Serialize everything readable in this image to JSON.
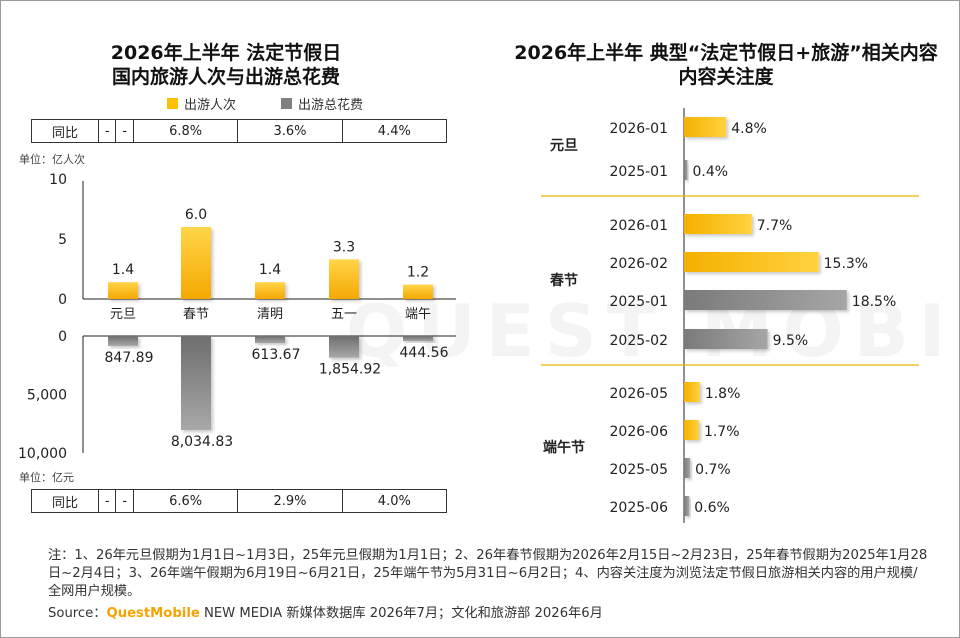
{
  "watermark": "QUEST MOBILE",
  "left": {
    "title_line1": "2026年上半年 法定节假日",
    "title_line2": "国内旅游人次与出游总花费",
    "legend": [
      {
        "label": "出游人次",
        "color": "#FFC000"
      },
      {
        "label": "出游总花费",
        "color": "#808080"
      }
    ],
    "yoy_label": "同比",
    "yoy_top": [
      "-",
      "-",
      "6.8%",
      "3.6%",
      "4.4%"
    ],
    "yoy_bottom": [
      "-",
      "-",
      "6.6%",
      "2.9%",
      "4.0%"
    ],
    "unit_top": "单位：亿人次",
    "unit_bottom": "单位：亿元"
  },
  "right": {
    "title_line1": "2026年上半年 典型“法定节假日+旅游”相关内容",
    "title_line2": "内容关注度"
  },
  "chart_data": [
    {
      "type": "bar",
      "ylabel": "单位：亿人次",
      "ylim": [
        0,
        10
      ],
      "yticks": [
        "10",
        "5",
        "0"
      ],
      "categories": [
        "元旦",
        "春节",
        "清明",
        "五一",
        "端午"
      ],
      "series": [
        {
          "name": "出游人次",
          "values": [
            1.4,
            6.0,
            1.4,
            3.3,
            1.2
          ],
          "labels": [
            "1.4",
            "6.0",
            "1.4",
            "3.3",
            "1.2"
          ]
        }
      ]
    },
    {
      "type": "bar",
      "orientation": "inverted",
      "ylabel": "单位：亿元",
      "ylim": [
        0,
        10000
      ],
      "yticks": [
        "0",
        "5,000",
        "10,000"
      ],
      "categories": [
        "元旦",
        "春节",
        "清明",
        "五一",
        "端午"
      ],
      "series": [
        {
          "name": "出游总花费",
          "values": [
            847.89,
            8034.83,
            613.67,
            1854.92,
            444.56
          ],
          "labels": [
            "847.89",
            "8,034.83",
            "613.67",
            "1,854.92",
            "444.56"
          ]
        }
      ]
    },
    {
      "type": "bar",
      "orientation": "horizontal",
      "xlim": [
        0,
        20
      ],
      "groups": [
        {
          "name": "元旦",
          "rows": [
            {
              "period": "2026-01",
              "value": 4.8,
              "label": "4.8%"
            },
            {
              "period": "2025-01",
              "value": 0.4,
              "label": "0.4%"
            }
          ]
        },
        {
          "name": "春节",
          "rows": [
            {
              "period": "2026-01",
              "value": 7.7,
              "label": "7.7%"
            },
            {
              "period": "2026-02",
              "value": 15.3,
              "label": "15.3%"
            },
            {
              "period": "2025-01",
              "value": 18.5,
              "label": "18.5%"
            },
            {
              "period": "2025-02",
              "value": 9.5,
              "label": "9.5%"
            }
          ]
        },
        {
          "name": "端午节",
          "rows": [
            {
              "period": "2026-05",
              "value": 1.8,
              "label": "1.8%"
            },
            {
              "period": "2026-06",
              "value": 1.7,
              "label": "1.7%"
            },
            {
              "period": "2025-05",
              "value": 0.7,
              "label": "0.7%"
            },
            {
              "period": "2025-06",
              "value": 0.6,
              "label": "0.6%"
            }
          ]
        }
      ],
      "colors": {
        "2026": "#FFC000",
        "2025": "#808080"
      }
    }
  ],
  "footnote": "注：1、26年元旦假期为1月1日~1月3日，25年元旦假期为1月1日；2、26年春节假期为2026年2月15日~2月23日，25年春节假期为2025年1月28日~2月4日；3、26年端午假期为6月19日~6月21日，25年端午节为5月31日~6月2日；4、内容关注度为浏览法定节假日旅游相关内容的用户规模/全网用户规模。",
  "source": {
    "prefix": "Source：",
    "brand": "QuestMobile",
    "rest": " NEW MEDIA 新媒体数据库 2026年7月；文化和旅游部 2026年6月"
  }
}
